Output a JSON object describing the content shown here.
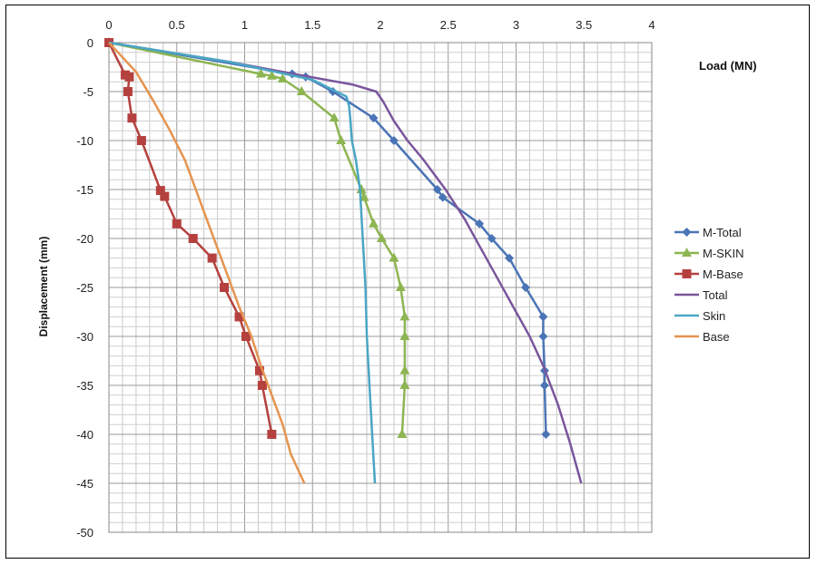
{
  "chart_data": {
    "type": "line",
    "title": "",
    "xlabel": "Load (MN)",
    "ylabel": "Displacement (mm)",
    "xlim": [
      0,
      4
    ],
    "ylim": [
      -50,
      0
    ],
    "x_ticks": [
      "0",
      "0.5",
      "1",
      "1.5",
      "2",
      "2.5",
      "3",
      "3.5",
      "4"
    ],
    "y_ticks": [
      "0",
      "-5",
      "-10",
      "-15",
      "-20",
      "-25",
      "-30",
      "-35",
      "-40",
      "-45",
      "-50"
    ],
    "grid": true,
    "legend_position": "right",
    "series": [
      {
        "name": "M-Total",
        "color": "#4a74b5",
        "marker": "diamond",
        "points": [
          [
            0,
            0
          ],
          [
            1.35,
            -3.2
          ],
          [
            1.45,
            -3.5
          ],
          [
            1.65,
            -5
          ],
          [
            1.95,
            -7.7
          ],
          [
            2.1,
            -10
          ],
          [
            2.42,
            -15
          ],
          [
            2.46,
            -15.8
          ],
          [
            2.73,
            -18.5
          ],
          [
            2.82,
            -20
          ],
          [
            2.95,
            -22
          ],
          [
            3.07,
            -25
          ],
          [
            3.2,
            -28
          ],
          [
            3.2,
            -30
          ],
          [
            3.21,
            -33.5
          ],
          [
            3.21,
            -35
          ],
          [
            3.22,
            -40
          ]
        ]
      },
      {
        "name": "M-SKIN",
        "color": "#8db551",
        "marker": "triangle",
        "points": [
          [
            0,
            0
          ],
          [
            1.12,
            -3.2
          ],
          [
            1.2,
            -3.4
          ],
          [
            1.28,
            -3.7
          ],
          [
            1.42,
            -5
          ],
          [
            1.66,
            -7.7
          ],
          [
            1.71,
            -10
          ],
          [
            1.86,
            -15
          ],
          [
            1.88,
            -15.8
          ],
          [
            1.95,
            -18.5
          ],
          [
            2.01,
            -20
          ],
          [
            2.1,
            -22
          ],
          [
            2.15,
            -25
          ],
          [
            2.18,
            -28
          ],
          [
            2.18,
            -30
          ],
          [
            2.18,
            -33.5
          ],
          [
            2.18,
            -35
          ],
          [
            2.16,
            -40
          ]
        ]
      },
      {
        "name": "M-Base",
        "color": "#b5413f",
        "marker": "square",
        "points": [
          [
            0,
            0
          ],
          [
            0.12,
            -3.3
          ],
          [
            0.15,
            -3.5
          ],
          [
            0.14,
            -5
          ],
          [
            0.17,
            -7.7
          ],
          [
            0.24,
            -10
          ],
          [
            0.38,
            -15.1
          ],
          [
            0.41,
            -15.7
          ],
          [
            0.5,
            -18.5
          ],
          [
            0.62,
            -20
          ],
          [
            0.76,
            -22
          ],
          [
            0.85,
            -25
          ],
          [
            0.96,
            -28
          ],
          [
            1.01,
            -30
          ],
          [
            1.11,
            -33.5
          ],
          [
            1.13,
            -35
          ],
          [
            1.2,
            -40
          ]
        ]
      },
      {
        "name": "Total",
        "color": "#7a569c",
        "marker": "none",
        "points": [
          [
            0,
            0
          ],
          [
            0.9,
            -2
          ],
          [
            1.4,
            -3.3
          ],
          [
            1.8,
            -4.3
          ],
          [
            1.97,
            -5
          ],
          [
            2.02,
            -6
          ],
          [
            2.1,
            -8
          ],
          [
            2.2,
            -10
          ],
          [
            2.32,
            -12
          ],
          [
            2.48,
            -15
          ],
          [
            2.62,
            -18
          ],
          [
            2.74,
            -21
          ],
          [
            2.86,
            -24
          ],
          [
            2.98,
            -27
          ],
          [
            3.1,
            -30
          ],
          [
            3.2,
            -33
          ],
          [
            3.31,
            -37
          ],
          [
            3.4,
            -41
          ],
          [
            3.48,
            -45
          ]
        ]
      },
      {
        "name": "Skin",
        "color": "#4aa6c4",
        "marker": "none",
        "points": [
          [
            0,
            0
          ],
          [
            0.9,
            -2
          ],
          [
            1.5,
            -3.8
          ],
          [
            1.75,
            -5.5
          ],
          [
            1.77,
            -6.5
          ],
          [
            1.78,
            -8
          ],
          [
            1.79,
            -10
          ],
          [
            1.82,
            -12
          ],
          [
            1.85,
            -15
          ],
          [
            1.87,
            -20
          ],
          [
            1.89,
            -25
          ],
          [
            1.9,
            -30
          ],
          [
            1.92,
            -35
          ],
          [
            1.94,
            -40
          ],
          [
            1.96,
            -45
          ]
        ]
      },
      {
        "name": "Base",
        "color": "#e5944f",
        "marker": "none",
        "points": [
          [
            0,
            0
          ],
          [
            0.2,
            -3
          ],
          [
            0.33,
            -6
          ],
          [
            0.45,
            -9
          ],
          [
            0.56,
            -12
          ],
          [
            0.64,
            -15
          ],
          [
            0.72,
            -18
          ],
          [
            0.8,
            -21
          ],
          [
            0.88,
            -24
          ],
          [
            0.96,
            -27
          ],
          [
            1.05,
            -30
          ],
          [
            1.12,
            -33
          ],
          [
            1.2,
            -36
          ],
          [
            1.28,
            -39
          ],
          [
            1.34,
            -42
          ],
          [
            1.44,
            -45
          ]
        ]
      }
    ]
  }
}
